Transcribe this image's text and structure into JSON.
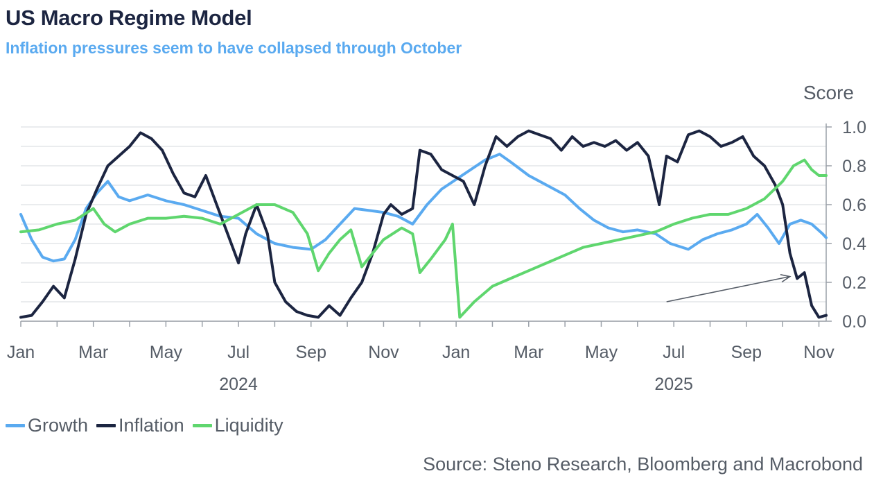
{
  "colors": {
    "growth": "#5aaaf0",
    "inflation": "#1c2541",
    "liquidity": "#5fd66e",
    "grid": "#e3e5e8",
    "text": "#555c66"
  },
  "chart_data": {
    "type": "line",
    "title": "US Macro Regime Model",
    "subtitle": "Inflation pressures seem to have collapsed through October",
    "ylabel": "Score",
    "ylim": [
      0,
      1.0
    ],
    "yticks": [
      "0.0",
      "0.2",
      "0.4",
      "0.6",
      "0.8",
      "1.0"
    ],
    "xlim": [
      0,
      22.2
    ],
    "xticks": [
      {
        "label": "Jan",
        "x": 0
      },
      {
        "label": "Mar",
        "x": 2
      },
      {
        "label": "May",
        "x": 4
      },
      {
        "label": "Jul",
        "x": 6
      },
      {
        "label": "Sep",
        "x": 8
      },
      {
        "label": "Nov",
        "x": 10
      },
      {
        "label": "Jan",
        "x": 12
      },
      {
        "label": "Mar",
        "x": 14
      },
      {
        "label": "May",
        "x": 16
      },
      {
        "label": "Jul",
        "x": 18
      },
      {
        "label": "Sep",
        "x": 20
      },
      {
        "label": "Nov",
        "x": 22
      }
    ],
    "year_labels": [
      {
        "label": "2024",
        "x": 6
      },
      {
        "label": "2025",
        "x": 18
      }
    ],
    "x_unit": "months since Jan 2024",
    "series": [
      {
        "name": "Growth",
        "color_key": "growth",
        "x": [
          0,
          0.3,
          0.6,
          0.9,
          1.2,
          1.5,
          1.8,
          2.1,
          2.4,
          2.7,
          3.0,
          3.5,
          4.0,
          4.5,
          5.0,
          5.5,
          6.0,
          6.5,
          7.0,
          7.5,
          8.0,
          8.4,
          8.8,
          9.2,
          9.6,
          10.0,
          10.4,
          10.8,
          11.2,
          11.6,
          12.0,
          12.4,
          12.8,
          13.2,
          13.5,
          14.0,
          14.5,
          15.0,
          15.4,
          15.8,
          16.2,
          16.6,
          17.0,
          17.5,
          17.9,
          18.4,
          18.8,
          19.2,
          19.6,
          20.0,
          20.3,
          20.6,
          20.9,
          21.2,
          21.5,
          21.8,
          22.1,
          22.2
        ],
        "values": [
          0.55,
          0.42,
          0.33,
          0.31,
          0.32,
          0.42,
          0.58,
          0.66,
          0.72,
          0.64,
          0.62,
          0.65,
          0.62,
          0.6,
          0.57,
          0.54,
          0.53,
          0.45,
          0.4,
          0.38,
          0.37,
          0.42,
          0.5,
          0.58,
          0.57,
          0.56,
          0.54,
          0.5,
          0.6,
          0.68,
          0.73,
          0.78,
          0.83,
          0.86,
          0.82,
          0.75,
          0.7,
          0.65,
          0.58,
          0.52,
          0.48,
          0.46,
          0.47,
          0.45,
          0.4,
          0.37,
          0.42,
          0.45,
          0.47,
          0.5,
          0.55,
          0.48,
          0.4,
          0.5,
          0.52,
          0.5,
          0.45,
          0.43
        ]
      },
      {
        "name": "Inflation",
        "color_key": "inflation",
        "x": [
          0,
          0.3,
          0.6,
          0.9,
          1.2,
          1.5,
          1.8,
          2.1,
          2.4,
          2.7,
          3.0,
          3.3,
          3.6,
          3.9,
          4.2,
          4.5,
          4.8,
          5.1,
          5.4,
          5.7,
          6.0,
          6.2,
          6.5,
          6.8,
          7.0,
          7.3,
          7.6,
          7.9,
          8.2,
          8.5,
          8.8,
          9.1,
          9.4,
          9.7,
          10.0,
          10.2,
          10.5,
          10.8,
          11.0,
          11.3,
          11.6,
          11.9,
          12.2,
          12.5,
          12.8,
          13.1,
          13.4,
          13.7,
          14.0,
          14.3,
          14.6,
          14.9,
          15.2,
          15.5,
          15.8,
          16.1,
          16.4,
          16.7,
          17.0,
          17.3,
          17.6,
          17.8,
          18.1,
          18.4,
          18.7,
          19.0,
          19.3,
          19.6,
          19.9,
          20.2,
          20.5,
          20.8,
          21.0,
          21.2,
          21.4,
          21.6,
          21.8,
          22.0,
          22.2
        ],
        "values": [
          0.02,
          0.03,
          0.1,
          0.18,
          0.12,
          0.32,
          0.55,
          0.68,
          0.8,
          0.85,
          0.9,
          0.97,
          0.94,
          0.88,
          0.76,
          0.66,
          0.64,
          0.75,
          0.6,
          0.45,
          0.3,
          0.45,
          0.6,
          0.45,
          0.2,
          0.1,
          0.05,
          0.03,
          0.02,
          0.08,
          0.03,
          0.12,
          0.2,
          0.35,
          0.55,
          0.6,
          0.55,
          0.58,
          0.88,
          0.86,
          0.78,
          0.75,
          0.72,
          0.6,
          0.8,
          0.95,
          0.9,
          0.95,
          0.98,
          0.96,
          0.94,
          0.88,
          0.95,
          0.9,
          0.92,
          0.9,
          0.93,
          0.88,
          0.92,
          0.85,
          0.6,
          0.85,
          0.82,
          0.96,
          0.98,
          0.95,
          0.9,
          0.92,
          0.95,
          0.85,
          0.8,
          0.7,
          0.6,
          0.35,
          0.22,
          0.25,
          0.08,
          0.02,
          0.03
        ]
      },
      {
        "name": "Liquidity",
        "color_key": "liquidity",
        "x": [
          0,
          0.5,
          1.0,
          1.5,
          2.0,
          2.3,
          2.6,
          3.0,
          3.5,
          4.0,
          4.5,
          5.0,
          5.5,
          6.0,
          6.5,
          7.0,
          7.5,
          7.9,
          8.2,
          8.5,
          8.8,
          9.1,
          9.4,
          9.7,
          10.0,
          10.5,
          10.8,
          11.0,
          11.3,
          11.7,
          11.9,
          12.1,
          12.5,
          13.0,
          13.5,
          14.0,
          14.5,
          15.0,
          15.5,
          16.0,
          16.5,
          17.0,
          17.5,
          18.0,
          18.5,
          19.0,
          19.5,
          20.0,
          20.5,
          21.0,
          21.3,
          21.6,
          21.8,
          22.0,
          22.2
        ],
        "values": [
          0.46,
          0.47,
          0.5,
          0.52,
          0.58,
          0.5,
          0.46,
          0.5,
          0.53,
          0.53,
          0.54,
          0.53,
          0.5,
          0.55,
          0.6,
          0.6,
          0.56,
          0.45,
          0.26,
          0.35,
          0.42,
          0.47,
          0.28,
          0.35,
          0.42,
          0.48,
          0.45,
          0.25,
          0.32,
          0.42,
          0.5,
          0.02,
          0.1,
          0.18,
          0.22,
          0.26,
          0.3,
          0.34,
          0.38,
          0.4,
          0.42,
          0.44,
          0.46,
          0.5,
          0.53,
          0.55,
          0.55,
          0.58,
          0.63,
          0.72,
          0.8,
          0.83,
          0.78,
          0.75,
          0.75
        ]
      }
    ],
    "annotation_arrow": {
      "from": [
        17.8,
        0.1
      ],
      "to": [
        21.2,
        0.23
      ]
    },
    "source": "Source: Steno Research, Bloomberg and Macrobond"
  },
  "legend": [
    {
      "label": "Growth",
      "color_key": "growth"
    },
    {
      "label": "Inflation",
      "color_key": "inflation"
    },
    {
      "label": "Liquidity",
      "color_key": "liquidity"
    }
  ]
}
